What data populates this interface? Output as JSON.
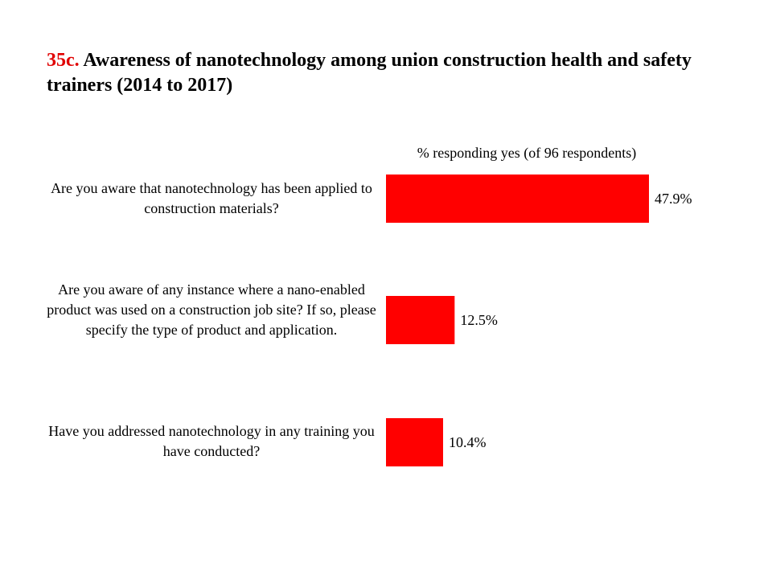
{
  "title": {
    "number": "35c.",
    "text": "Awareness of nanotechnology among union construction health and safety trainers (2014 to 2017)"
  },
  "chart_data": {
    "type": "bar",
    "orientation": "horizontal",
    "title": "35c. Awareness of nanotechnology among union construction health and safety trainers (2014 to 2017)",
    "xlabel": "% responding  yes  (of 96 respondents)",
    "ylabel": "",
    "categories": [
      "Are you aware that nanotechnology has been applied to construction materials?",
      "Are you aware of any instance where a nano-enabled product was used on a construction job site? If so, please specify the type of product and application.",
      "Have you addressed nanotechnology in any training you have conducted?"
    ],
    "values": [
      47.9,
      12.5,
      10.4
    ],
    "data_labels": [
      "47.9%",
      "12.5%",
      "10.4%"
    ],
    "bar_color": "#ff0000",
    "xlim": [
      0,
      50
    ],
    "grid": false,
    "legend": "none"
  }
}
